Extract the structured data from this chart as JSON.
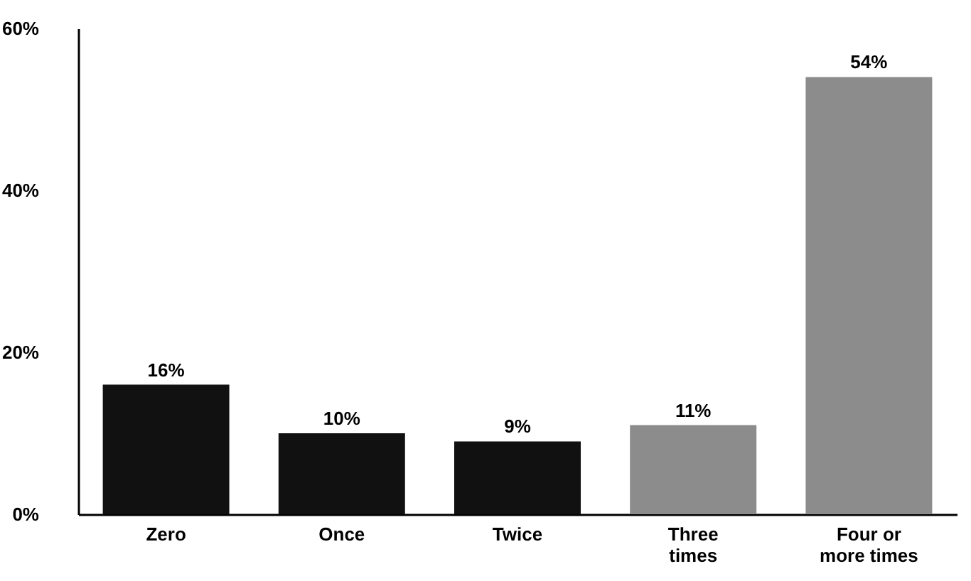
{
  "chart_data": {
    "type": "bar",
    "categories": [
      "Zero",
      "Once",
      "Twice",
      "Three times",
      "Four or more times"
    ],
    "values": [
      16,
      10,
      9,
      11,
      54
    ],
    "colors": [
      "#111111",
      "#111111",
      "#111111",
      "#8c8c8c",
      "#8c8c8c"
    ],
    "value_labels": [
      "16%",
      "10%",
      "9%",
      "11%",
      "54%"
    ],
    "ylim": [
      0,
      60
    ],
    "yticks": [
      {
        "value": 0,
        "label": "0%"
      },
      {
        "value": 20,
        "label": "20%"
      },
      {
        "value": 40,
        "label": "40%"
      },
      {
        "value": 60,
        "label": "60%"
      }
    ],
    "grid": false
  }
}
